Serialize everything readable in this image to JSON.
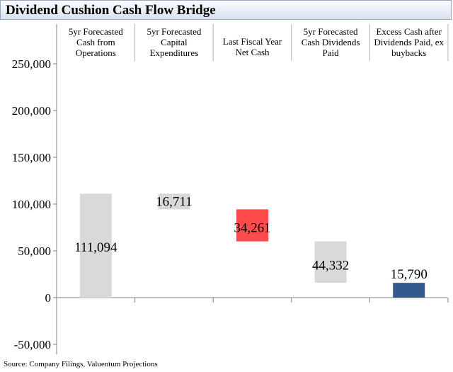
{
  "title": "Dividend Cushion Cash Flow Bridge",
  "source": "Source: Company Filings, Valuentum Projections",
  "colors": {
    "neutral": "#d9d9d9",
    "negative": "#ff4b4b",
    "result": "#34598f"
  },
  "chart_data": {
    "type": "bar",
    "subtype": "waterfall",
    "categories": [
      [
        "5yr Forecasted",
        "Cash from",
        "Operations"
      ],
      [
        "5yr Forecasted",
        "Capital",
        "Expenditures"
      ],
      [
        "Last Fiscal Year",
        "Net Cash"
      ],
      [
        "5yr Forecasted",
        "Cash Dividends",
        "Paid"
      ],
      [
        "Excess Cash after",
        "Dividends Paid, ex",
        "buybacks"
      ]
    ],
    "values": [
      111094,
      -16711,
      -34261,
      -44332,
      15790
    ],
    "value_labels": [
      "111,094",
      "16,711",
      "34,261",
      "44,332",
      "15,790"
    ],
    "bars": [
      {
        "low": 0,
        "high": 111094,
        "color": "neutral"
      },
      {
        "low": 94383,
        "high": 111094,
        "color": "neutral"
      },
      {
        "low": 60122,
        "high": 94383,
        "color": "negative"
      },
      {
        "low": 15790,
        "high": 60122,
        "color": "neutral"
      },
      {
        "low": 0,
        "high": 15790,
        "color": "result"
      }
    ],
    "ylim": [
      -50000,
      250000
    ],
    "yticks": [
      250000,
      200000,
      150000,
      100000,
      50000,
      0,
      -50000
    ],
    "ytick_labels": [
      "250,000",
      "200,000",
      "150,000",
      "100,000",
      "50,000",
      "0",
      "-50,000"
    ],
    "xlabel": "",
    "ylabel": "",
    "grid": false,
    "legend": "none"
  }
}
